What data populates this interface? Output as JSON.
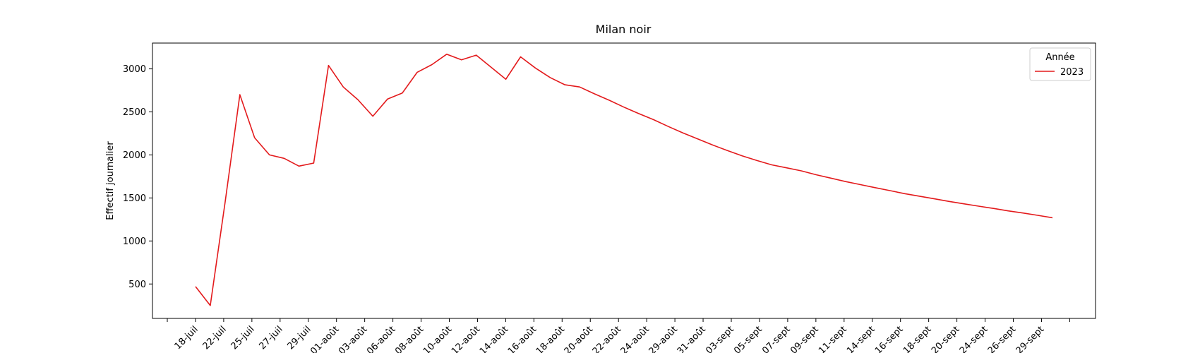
{
  "chart_data": {
    "type": "line",
    "title": "Milan noir",
    "xlabel": "",
    "ylabel": "Effectif journalier",
    "legend": {
      "title": "Année",
      "placement": "top-right"
    },
    "grid": false,
    "ylim": [
      100,
      3300
    ],
    "yticks": [
      500,
      1000,
      1500,
      2000,
      2500,
      3000
    ],
    "xticks": [
      "18-juil",
      "22-juil",
      "25-juil",
      "27-juil",
      "29-juil",
      "01-août",
      "03-août",
      "06-août",
      "08-août",
      "10-août",
      "12-août",
      "14-août",
      "16-août",
      "18-août",
      "20-août",
      "22-août",
      "24-août",
      "29-août",
      "31-août",
      "03-sept",
      "05-sept",
      "07-sept",
      "09-sept",
      "11-sept",
      "14-sept",
      "16-sept",
      "18-sept",
      "20-sept",
      "24-sept",
      "26-sept",
      "29-sept"
    ],
    "series": [
      {
        "name": "2023",
        "color": "#e31a1c",
        "values": [
          470,
          250,
          1450,
          2700,
          2200,
          2000,
          1960,
          1870,
          1905,
          3040,
          2790,
          2640,
          2450,
          2650,
          2720,
          2960,
          3050,
          3170,
          3105,
          3160,
          3020,
          2880,
          3140,
          3010,
          2900,
          2815,
          2790,
          2710,
          2635,
          2555,
          2480,
          2410,
          2330,
          2255,
          2185,
          2115,
          2050,
          1990,
          1935,
          1885,
          1850,
          1815,
          1770,
          1730,
          1690,
          1655,
          1620,
          1585,
          1550,
          1520,
          1490,
          1460,
          1432,
          1405,
          1378,
          1350,
          1325,
          1298,
          1270
        ]
      }
    ]
  }
}
